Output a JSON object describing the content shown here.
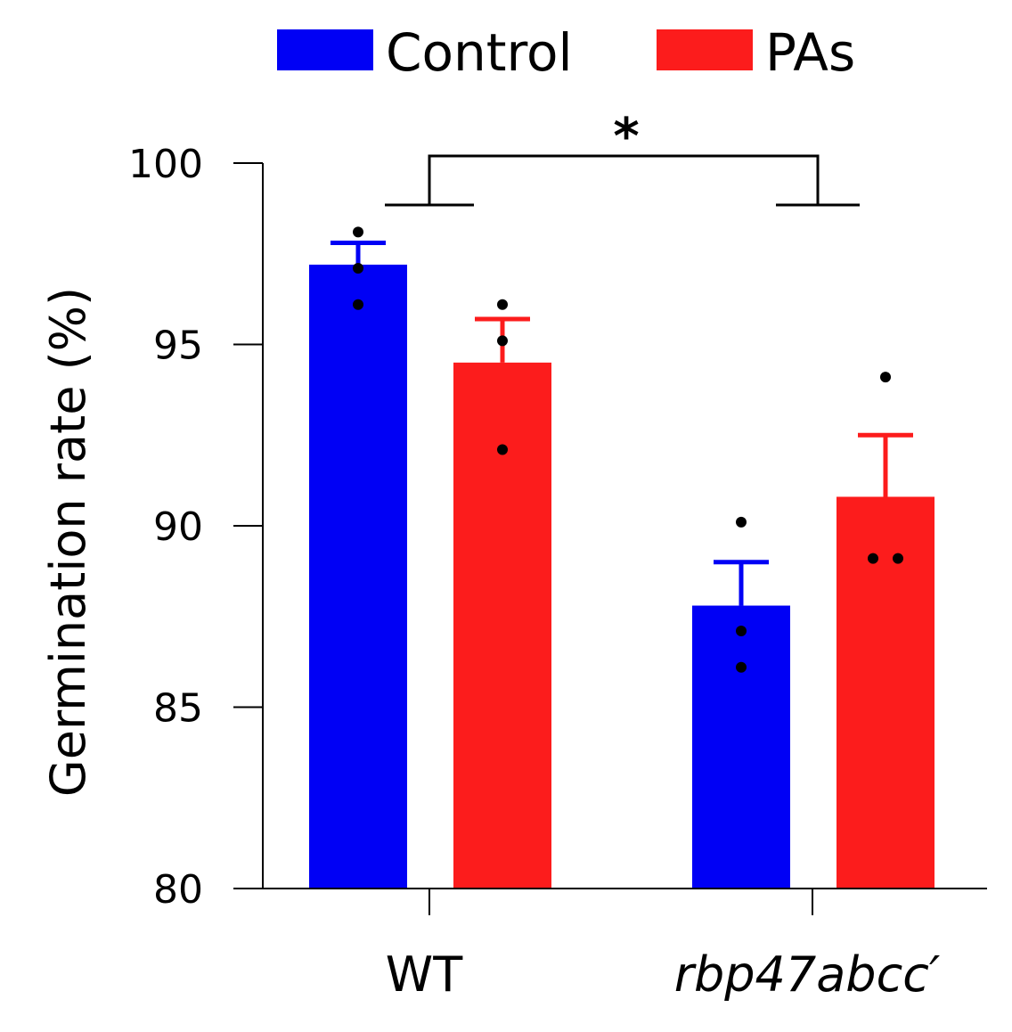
{
  "chart_data": {
    "type": "bar",
    "categories": [
      "WT",
      "rbp47abcc′"
    ],
    "italic_categories": [
      false,
      true
    ],
    "ylabel": "Germination rate (%)",
    "xlabel": "",
    "ylim": [
      80,
      100
    ],
    "yticks": [
      80,
      85,
      90,
      95,
      100
    ],
    "legend_position": "top",
    "series": [
      {
        "name": "Control",
        "color": "#0000f5",
        "values": [
          97.2,
          87.8
        ],
        "errors": [
          0.6,
          1.2
        ],
        "points": [
          [
            98.1,
            97.1,
            96.1
          ],
          [
            90.1,
            87.1,
            86.1
          ]
        ]
      },
      {
        "name": "PAs",
        "color": "#fc1c1c",
        "values": [
          94.5,
          90.8
        ],
        "errors": [
          1.2,
          1.7
        ],
        "points": [
          [
            96.1,
            95.1,
            92.1
          ],
          [
            94.1,
            89.1,
            89.1
          ]
        ]
      }
    ],
    "annotations": [
      {
        "text": "*",
        "from_category": 0,
        "to_category": 1
      }
    ]
  }
}
